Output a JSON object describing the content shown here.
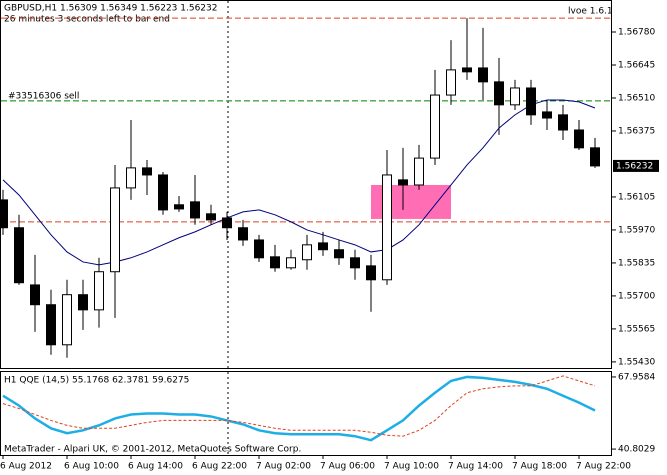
{
  "chart_data": [
    {
      "type": "candlestick",
      "title": "GBPUSD,H1  1.56309 1.56349 1.56223 1.56232",
      "subtitle": "26 minutes 3 seconds left to bar end",
      "annotation": "lvoe 1.6.1",
      "categories": [
        "6 Aug 2012",
        null,
        null,
        null,
        "6 Aug 10:00",
        null,
        null,
        null,
        "6 Aug 14:00",
        null,
        null,
        null,
        "6 Aug 22:00",
        null,
        null,
        null,
        "7 Aug 02:00",
        null,
        null,
        null,
        "7 Aug 06:00",
        null,
        null,
        null,
        "7 Aug 10:00",
        null,
        null,
        null,
        "7 Aug 14:00",
        null,
        null,
        null,
        "7 Aug 18:00",
        null,
        null,
        null,
        "7 Aug 22:00",
        null
      ],
      "open": [
        1.56093,
        1.55979,
        1.55745,
        1.55664,
        1.555,
        1.55705,
        1.55643,
        1.55799,
        1.56142,
        1.56224,
        1.56195,
        1.56073,
        1.56085,
        1.56036,
        1.56019,
        1.55979,
        1.55929,
        1.5586,
        1.55815,
        1.55848,
        1.55917,
        1.55889,
        1.55856,
        1.55823,
        1.55766,
        1.56175,
        1.56154,
        1.56264,
        1.56522,
        1.56633,
        1.56633,
        1.56576,
        1.56482,
        1.56551,
        1.56453,
        1.56441,
        1.56379,
        1.56306
      ],
      "high": [
        1.56134,
        1.56032,
        1.55868,
        1.55725,
        1.55766,
        1.55766,
        1.55856,
        1.56236,
        1.5642,
        1.56256,
        1.56207,
        1.56109,
        1.56195,
        1.56073,
        1.56044,
        1.56011,
        1.5595,
        1.55909,
        1.55889,
        1.5595,
        1.55962,
        1.55929,
        1.55889,
        1.55868,
        1.56297,
        1.56306,
        1.56318,
        1.56625,
        1.56747,
        1.56837,
        1.56797,
        1.56674,
        1.56584,
        1.56584,
        1.56502,
        1.56482,
        1.5642,
        1.56347
      ],
      "low": [
        1.5595,
        1.55745,
        1.55553,
        1.55459,
        1.55447,
        1.55561,
        1.5557,
        1.5561,
        1.56093,
        1.56113,
        1.56032,
        1.56044,
        1.55991,
        1.55991,
        1.55929,
        1.55905,
        1.55839,
        1.55799,
        1.55807,
        1.55807,
        1.55864,
        1.55827,
        1.55766,
        1.55635,
        1.55745,
        1.56052,
        1.56134,
        1.56236,
        1.56482,
        1.56584,
        1.56502,
        1.56359,
        1.56461,
        1.564,
        1.56379,
        1.56338,
        1.56297,
        1.56224
      ],
      "close": [
        1.55979,
        1.55754,
        1.55664,
        1.555,
        1.55705,
        1.55643,
        1.55799,
        1.56142,
        1.56224,
        1.56195,
        1.56052,
        1.56056,
        1.56019,
        1.56011,
        1.55979,
        1.55929,
        1.55856,
        1.55815,
        1.55856,
        1.55909,
        1.55889,
        1.55856,
        1.55815,
        1.55766,
        1.56195,
        1.56154,
        1.56264,
        1.56522,
        1.56625,
        1.56617,
        1.56576,
        1.56482,
        1.56551,
        1.56441,
        1.56428,
        1.56379,
        1.56306,
        1.56232
      ],
      "up_color": "#ffffff",
      "down_color": "#000000",
      "ma": {
        "color": "#000080",
        "values": [
          1.56175,
          1.56113,
          1.56032,
          1.5595,
          1.5588,
          1.55839,
          1.55827,
          1.55839,
          1.55856,
          1.5588,
          1.55909,
          1.55938,
          1.55962,
          1.55991,
          1.56019,
          1.56044,
          1.56052,
          1.56032,
          1.56003,
          1.5597,
          1.5595,
          1.55929,
          1.55909,
          1.5588,
          1.55889,
          1.55929,
          1.55991,
          1.56073,
          1.56154,
          1.56236,
          1.56306,
          1.56387,
          1.56441,
          1.56482,
          1.56502,
          1.56502,
          1.56494,
          1.56469
        ]
      },
      "levels": [
        {
          "value": 1.56498,
          "color": "#008000",
          "label": "#33516306 sell"
        },
        {
          "value": 1.56837,
          "color": "#e0401c"
        },
        {
          "value": 1.56003,
          "color": "#e0401c"
        }
      ],
      "zone": {
        "ylim": [
          1.56015,
          1.56154
        ],
        "color": "#ff6eb4"
      },
      "last_price": 1.56232,
      "ylim": [
        1.55405,
        1.56911
      ],
      "yticks": [
        {
          "value": 1.5678,
          "label": "1.56780"
        },
        1.56645,
        {
          "value": 1.5651,
          "label": "1.56510"
        },
        1.56375,
        1.56105,
        {
          "value": 1.5597,
          "label": "1.55970"
        },
        1.55835,
        {
          "value": 1.557,
          "label": "1.55700"
        },
        1.55565,
        {
          "value": 1.5543,
          "label": "1.55430"
        }
      ]
    },
    {
      "type": "line",
      "title": "H1 QQE (14,5) 55.1768 62.3781 59.6275",
      "series": [
        {
          "color": "#1eaee6",
          "values": [
            60.89,
            57.17,
            52.34,
            48.62,
            46.76,
            47.87,
            49.73,
            52.34,
            53.82,
            54.2,
            54.2,
            53.82,
            53.82,
            53.08,
            51.59,
            50.1,
            47.87,
            46.76,
            46.38,
            46.38,
            46.38,
            46.38,
            45.64,
            44.15,
            47.87,
            51.59,
            57.17,
            62.01,
            66.47,
            67.96,
            67.59,
            66.84,
            66.1,
            64.98,
            63.5,
            60.89,
            58.29,
            55.31
          ]
        },
        {
          "color": "#e0401c",
          "values": [
            57.92,
            56.06,
            53.82,
            51.59,
            49.73,
            48.62,
            48.62,
            48.62,
            49.73,
            50.85,
            51.59,
            51.59,
            51.59,
            51.59,
            51.59,
            50.85,
            49.73,
            48.62,
            47.87,
            47.87,
            47.87,
            47.87,
            47.87,
            47.13,
            46.01,
            45.64,
            47.87,
            51.59,
            57.17,
            62.01,
            63.5,
            64.24,
            64.61,
            64.61,
            66.47,
            68.33,
            66.47,
            64.61
          ],
          "dashed": true
        }
      ],
      "ylim": [
        38.57,
        69.82
      ],
      "yticks": [
        67.9584,
        40.8029
      ]
    }
  ],
  "footer": "MetaTrader - Alpari UK, © 2001-2012, MetaQuotes Software Corp."
}
